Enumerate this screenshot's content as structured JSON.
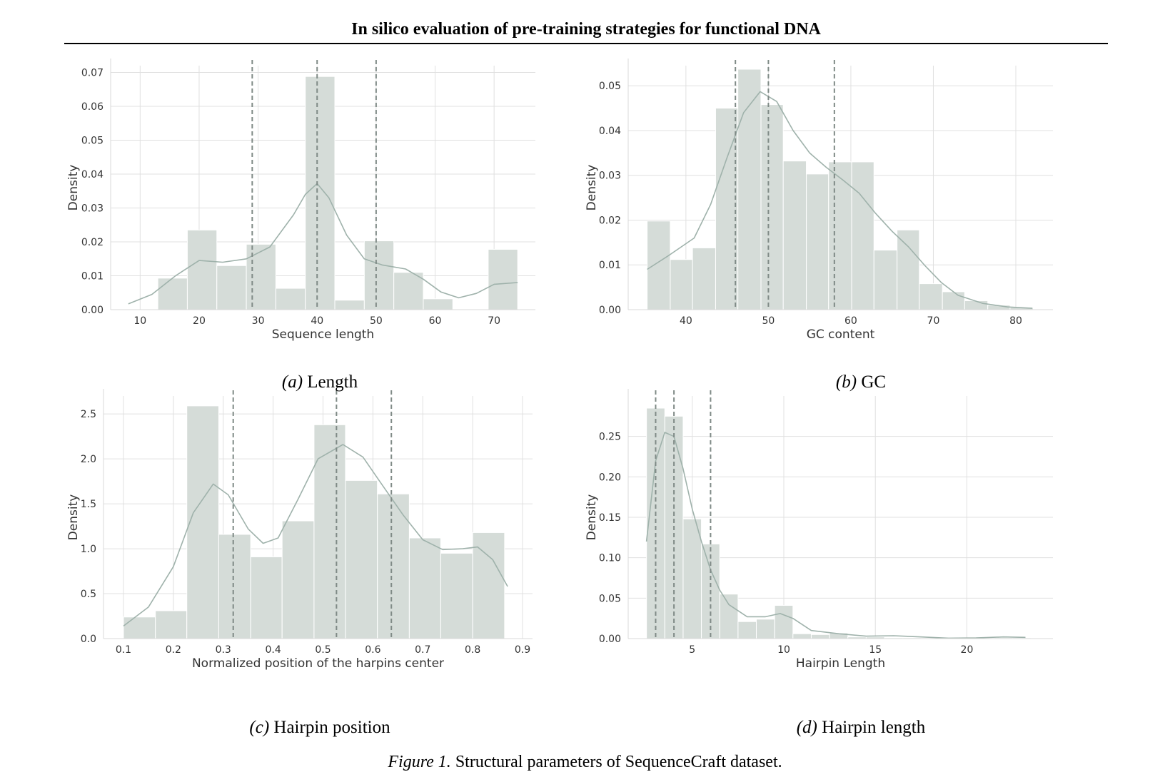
{
  "header": {
    "title": "In silico evaluation of pre-training strategies for functional DNA"
  },
  "figure_caption": {
    "label": "Figure 1.",
    "text": "Structural parameters of SequenceCraft dataset."
  },
  "panels": [
    {
      "caption_label": "(a)",
      "caption_text": "Length"
    },
    {
      "caption_label": "(b)",
      "caption_text": "GC"
    },
    {
      "caption_label": "(c)",
      "caption_text": "Hairpin position"
    },
    {
      "caption_label": "(d)",
      "caption_text": "Hairpin length"
    }
  ],
  "colors": {
    "bar": "#d5dcd8",
    "kde": "#9fb2ab",
    "vline": "#7f8a86",
    "grid": "#e0e0e0"
  },
  "chart_data": [
    {
      "type": "bar",
      "subtype": "histogram-with-kde",
      "xlabel": "Sequence length",
      "ylabel": "Density",
      "xlim": [
        5,
        77
      ],
      "ylim": [
        0,
        0.072
      ],
      "xticks": [
        10,
        20,
        30,
        40,
        50,
        60,
        70
      ],
      "yticks": [
        0.0,
        0.01,
        0.02,
        0.03,
        0.04,
        0.05,
        0.06,
        0.07
      ],
      "ytick_decimals": 2,
      "bins": [
        [
          13,
          18,
          0.0093
        ],
        [
          18,
          23,
          0.0235
        ],
        [
          23,
          28,
          0.013
        ],
        [
          28,
          33,
          0.0193
        ],
        [
          33,
          38,
          0.0063
        ],
        [
          38,
          43,
          0.0688
        ],
        [
          43,
          48,
          0.0028
        ],
        [
          48,
          53,
          0.0203
        ],
        [
          53,
          58,
          0.011
        ],
        [
          58,
          63,
          0.0032
        ],
        [
          69,
          74,
          0.0178
        ]
      ],
      "kde": [
        [
          8,
          0.0017
        ],
        [
          12,
          0.0045
        ],
        [
          16,
          0.01
        ],
        [
          20,
          0.0145
        ],
        [
          24,
          0.014
        ],
        [
          28,
          0.015
        ],
        [
          32,
          0.0185
        ],
        [
          36,
          0.028
        ],
        [
          38,
          0.034
        ],
        [
          40,
          0.0372
        ],
        [
          42,
          0.033
        ],
        [
          45,
          0.022
        ],
        [
          48,
          0.015
        ],
        [
          51,
          0.0132
        ],
        [
          55,
          0.012
        ],
        [
          58,
          0.009
        ],
        [
          61,
          0.0052
        ],
        [
          64,
          0.0035
        ],
        [
          67,
          0.0048
        ],
        [
          70,
          0.0075
        ],
        [
          74,
          0.008
        ]
      ],
      "vlines": [
        29,
        40,
        50
      ]
    },
    {
      "type": "bar",
      "subtype": "histogram-with-kde",
      "xlabel": "GC content",
      "ylabel": "Density",
      "xlim": [
        33,
        84.5
      ],
      "ylim": [
        0,
        0.0545
      ],
      "xticks": [
        40,
        50,
        60,
        70,
        80
      ],
      "yticks": [
        0.0,
        0.01,
        0.02,
        0.03,
        0.04,
        0.05
      ],
      "ytick_decimals": 2,
      "bins": [
        [
          35.3,
          38.1,
          0.0198
        ],
        [
          38.1,
          40.8,
          0.0112
        ],
        [
          40.8,
          43.6,
          0.0138
        ],
        [
          43.6,
          46.3,
          0.045
        ],
        [
          46.3,
          49.1,
          0.0537
        ],
        [
          49.1,
          51.8,
          0.0458
        ],
        [
          51.8,
          54.6,
          0.0332
        ],
        [
          54.6,
          57.3,
          0.0303
        ],
        [
          57.3,
          60.1,
          0.033
        ],
        [
          60.1,
          62.8,
          0.033
        ],
        [
          62.8,
          65.6,
          0.0133
        ],
        [
          65.6,
          68.3,
          0.0178
        ],
        [
          68.3,
          71.1,
          0.0058
        ],
        [
          71.1,
          73.8,
          0.004
        ],
        [
          73.8,
          76.6,
          0.002
        ],
        [
          76.6,
          79.3,
          0.001
        ],
        [
          79.3,
          82.1,
          0.0005
        ]
      ],
      "kde": [
        [
          35.3,
          0.009
        ],
        [
          38,
          0.0122
        ],
        [
          41,
          0.016
        ],
        [
          43,
          0.0235
        ],
        [
          45,
          0.034
        ],
        [
          47,
          0.044
        ],
        [
          49,
          0.0487
        ],
        [
          51,
          0.0465
        ],
        [
          53,
          0.04
        ],
        [
          55,
          0.035
        ],
        [
          57,
          0.0318
        ],
        [
          59,
          0.029
        ],
        [
          61,
          0.026
        ],
        [
          63,
          0.0215
        ],
        [
          65,
          0.0175
        ],
        [
          67,
          0.014
        ],
        [
          69,
          0.0098
        ],
        [
          71,
          0.006
        ],
        [
          73,
          0.0032
        ],
        [
          76,
          0.0014
        ],
        [
          79,
          0.0006
        ],
        [
          82,
          0.0003
        ]
      ],
      "vlines": [
        46,
        50,
        58
      ]
    },
    {
      "type": "bar",
      "subtype": "histogram-with-kde",
      "xlabel": "Normalized position of the harpins center",
      "ylabel": "Density",
      "xlim": [
        0.06,
        0.92
      ],
      "ylim": [
        0,
        2.7
      ],
      "xticks": [
        0.1,
        0.2,
        0.3,
        0.4,
        0.5,
        0.6,
        0.7,
        0.8,
        0.9
      ],
      "yticks": [
        0.0,
        0.5,
        1.0,
        1.5,
        2.0,
        2.5
      ],
      "ytick_decimals": 1,
      "bins": [
        [
          0.1,
          0.164,
          0.24
        ],
        [
          0.164,
          0.227,
          0.31
        ],
        [
          0.227,
          0.291,
          2.59
        ],
        [
          0.291,
          0.355,
          1.16
        ],
        [
          0.355,
          0.418,
          0.91
        ],
        [
          0.418,
          0.482,
          1.31
        ],
        [
          0.482,
          0.545,
          2.38
        ],
        [
          0.545,
          0.609,
          1.76
        ],
        [
          0.609,
          0.673,
          1.61
        ],
        [
          0.673,
          0.736,
          1.12
        ],
        [
          0.736,
          0.8,
          0.95
        ],
        [
          0.8,
          0.864,
          1.18
        ]
      ],
      "kde": [
        [
          0.1,
          0.14
        ],
        [
          0.15,
          0.35
        ],
        [
          0.2,
          0.8
        ],
        [
          0.24,
          1.4
        ],
        [
          0.28,
          1.72
        ],
        [
          0.31,
          1.6
        ],
        [
          0.35,
          1.22
        ],
        [
          0.38,
          1.06
        ],
        [
          0.41,
          1.12
        ],
        [
          0.45,
          1.55
        ],
        [
          0.49,
          2.0
        ],
        [
          0.54,
          2.16
        ],
        [
          0.58,
          2.02
        ],
        [
          0.62,
          1.7
        ],
        [
          0.66,
          1.38
        ],
        [
          0.7,
          1.1
        ],
        [
          0.74,
          0.99
        ],
        [
          0.78,
          1.0
        ],
        [
          0.81,
          1.02
        ],
        [
          0.84,
          0.88
        ],
        [
          0.87,
          0.58
        ]
      ],
      "vlines": [
        0.32,
        0.527,
        0.637
      ]
    },
    {
      "type": "bar",
      "subtype": "histogram-with-kde",
      "xlabel": "Hairpin Length",
      "ylabel": "Density",
      "xlim": [
        1.5,
        24.7
      ],
      "ylim": [
        0,
        0.3
      ],
      "xticks": [
        5,
        10,
        15,
        20
      ],
      "yticks": [
        0.0,
        0.05,
        0.1,
        0.15,
        0.2,
        0.25
      ],
      "ytick_decimals": 2,
      "bins": [
        [
          2.5,
          3.5,
          0.285
        ],
        [
          3.5,
          4.5,
          0.275
        ],
        [
          4.5,
          5.5,
          0.148
        ],
        [
          5.5,
          6.5,
          0.117
        ],
        [
          6.5,
          7.5,
          0.055
        ],
        [
          7.5,
          8.5,
          0.021
        ],
        [
          8.5,
          9.5,
          0.024
        ],
        [
          9.5,
          10.5,
          0.041
        ],
        [
          10.5,
          11.5,
          0.006
        ],
        [
          11.5,
          12.5,
          0.005
        ],
        [
          12.5,
          13.5,
          0.007
        ],
        [
          13.5,
          14.5,
          0.002
        ],
        [
          14.5,
          15.5,
          0.002
        ],
        [
          15.5,
          16.5,
          0.001
        ],
        [
          16.5,
          17.5,
          0.001
        ],
        [
          21.5,
          22.5,
          0.001
        ],
        [
          22.5,
          23.5,
          0.001
        ]
      ],
      "kde": [
        [
          2.5,
          0.12
        ],
        [
          3.0,
          0.22
        ],
        [
          3.5,
          0.255
        ],
        [
          4.0,
          0.25
        ],
        [
          4.5,
          0.21
        ],
        [
          5.0,
          0.16
        ],
        [
          5.5,
          0.12
        ],
        [
          6.0,
          0.085
        ],
        [
          6.5,
          0.06
        ],
        [
          7.0,
          0.042
        ],
        [
          8.0,
          0.027
        ],
        [
          9.0,
          0.027
        ],
        [
          9.8,
          0.031
        ],
        [
          10.5,
          0.025
        ],
        [
          11.5,
          0.01
        ],
        [
          13,
          0.006
        ],
        [
          14.5,
          0.003
        ],
        [
          16,
          0.0035
        ],
        [
          17.5,
          0.002
        ],
        [
          19,
          0.0005
        ],
        [
          20.5,
          0.0008
        ],
        [
          22,
          0.002
        ],
        [
          23.2,
          0.0015
        ]
      ],
      "vlines": [
        3,
        4,
        6
      ]
    }
  ]
}
